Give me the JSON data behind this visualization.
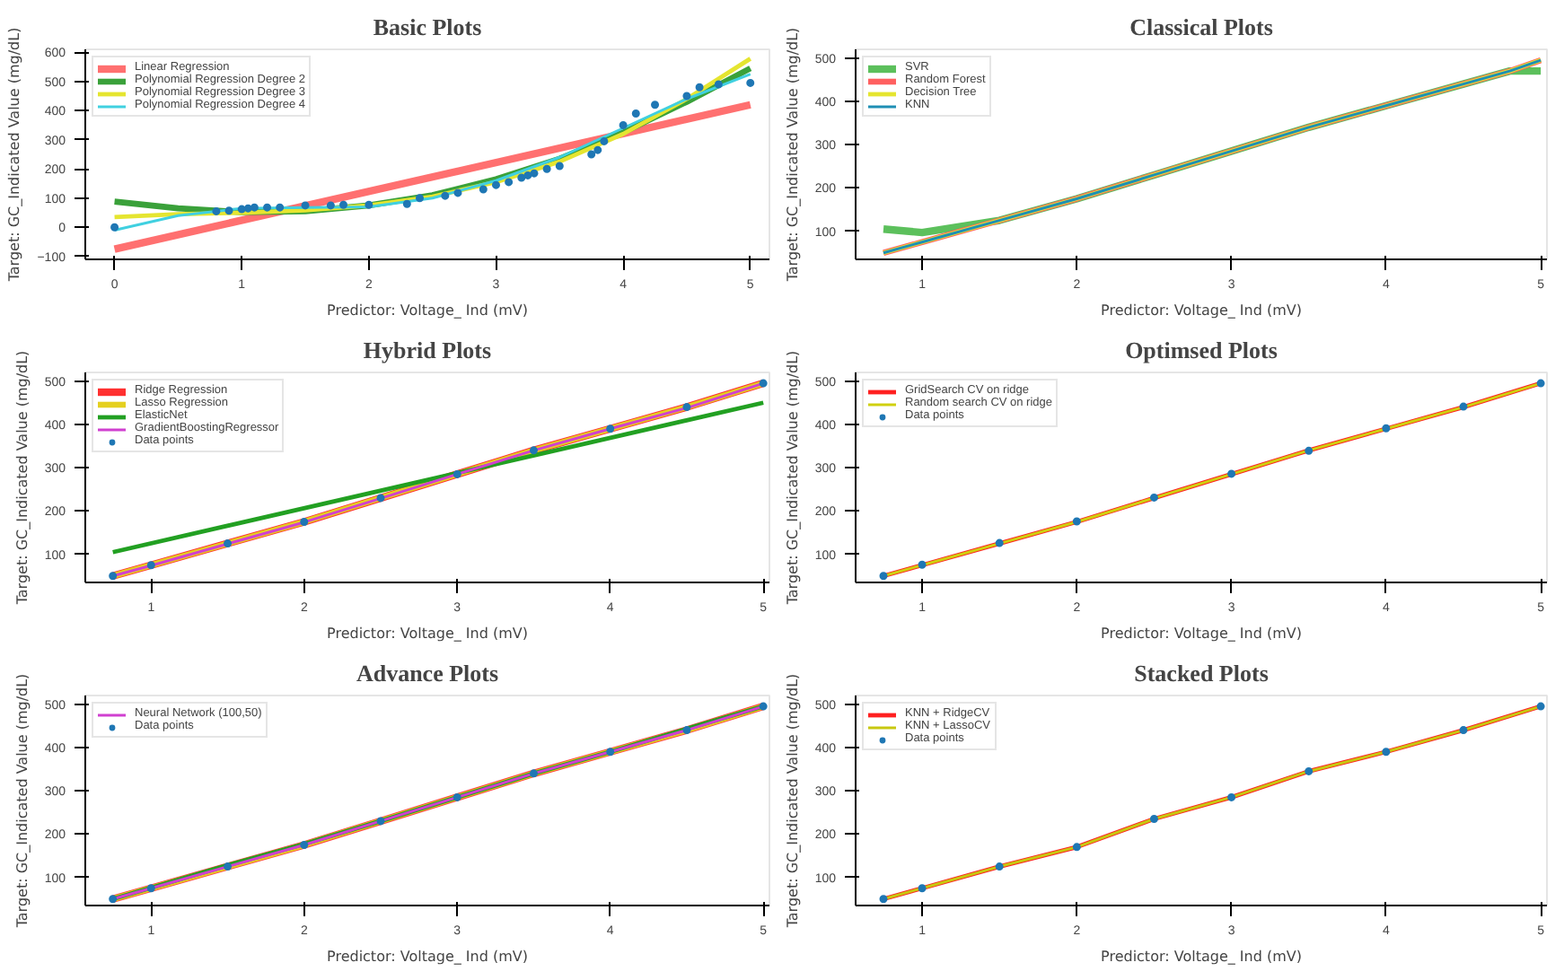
{
  "chart_data": [
    {
      "type": "line",
      "title": "Basic Plots",
      "xlabel": "Predictor: Voltage_ Ind (mV)",
      "ylabel": "Target: GC_Indicated Value (mg/dL)",
      "xlim": [
        -0.23,
        5.15
      ],
      "ylim": [
        -110,
        610
      ],
      "xticks": [
        0,
        1,
        2,
        3,
        4,
        5
      ],
      "yticks": [
        -100,
        0,
        100,
        200,
        300,
        400,
        500,
        600
      ],
      "legend": "top left",
      "x": [
        0,
        0.5,
        1,
        1.5,
        2,
        2.5,
        3,
        3.5,
        4,
        4.5,
        5
      ],
      "series": [
        {
          "name": "Linear Regression",
          "color": "#ff7070",
          "x": [
            0,
            5
          ],
          "values": [
            -75,
            420
          ]
        },
        {
          "name": "Polynomial Regression Degree 2",
          "color": "#3aa13a",
          "values": [
            88,
            65,
            52,
            55,
            75,
            110,
            165,
            235,
            325,
            430,
            545
          ]
        },
        {
          "name": "Polynomial Regression Degree 3",
          "color": "#e5e530",
          "values": [
            35,
            45,
            50,
            58,
            75,
            105,
            155,
            225,
            320,
            440,
            578
          ]
        },
        {
          "name": "Polynomial Regression Degree 4",
          "color": "#40d0e0",
          "values": [
            -10,
            40,
            65,
            68,
            70,
            100,
            160,
            240,
            340,
            440,
            525
          ]
        },
        {
          "type": "scatter",
          "color": "#1f77b4",
          "x": [
            0,
            0.8,
            0.9,
            1,
            1.05,
            1.1,
            1.2,
            1.3,
            1.5,
            1.7,
            1.8,
            2,
            2.3,
            2.4,
            2.6,
            2.7,
            2.9,
            3,
            3.1,
            3.2,
            3.25,
            3.3,
            3.4,
            3.5,
            3.75,
            3.8,
            3.85,
            4,
            4.1,
            4.25,
            4.5,
            4.6,
            4.75,
            5
          ],
          "values": [
            0,
            55,
            57,
            62,
            65,
            68,
            68,
            68,
            75,
            75,
            77,
            77,
            80,
            100,
            108,
            118,
            130,
            145,
            155,
            170,
            178,
            185,
            200,
            210,
            250,
            265,
            295,
            350,
            390,
            420,
            450,
            480,
            490,
            495
          ]
        }
      ]
    },
    {
      "type": "line",
      "title": "Classical Plots",
      "xlabel": "Predictor: Voltage_ Ind (mV)",
      "ylabel": "Target: GC_Indicated Value (mg/dL)",
      "xlim": [
        0.57,
        5.04
      ],
      "ylim": [
        35,
        520
      ],
      "xticks": [
        1,
        2,
        3,
        4,
        5
      ],
      "yticks": [
        100,
        200,
        300,
        400,
        500
      ],
      "legend": "top left",
      "x": [
        0.75,
        1,
        1.5,
        2,
        2.5,
        3,
        3.5,
        4,
        4.5,
        4.8,
        5
      ],
      "series": [
        {
          "name": "SVR",
          "color": "#5cc05c",
          "values": [
            105,
            97,
            125,
            175,
            230,
            285,
            340,
            390,
            440,
            470,
            470
          ]
        },
        {
          "name": "Random Forest",
          "color": "#ff6060",
          "values": [
            50,
            75,
            125,
            175,
            230,
            285,
            340,
            390,
            440,
            470,
            495
          ]
        },
        {
          "name": "Decision Tree",
          "color": "#e5e530",
          "values": [
            50,
            75,
            125,
            175,
            230,
            285,
            340,
            390,
            440,
            470,
            495
          ]
        },
        {
          "name": "KNN",
          "color": "#1f8fb4",
          "values": [
            50,
            75,
            125,
            175,
            230,
            285,
            340,
            390,
            440,
            470,
            495
          ]
        }
      ]
    },
    {
      "type": "line",
      "title": "Hybrid Plots",
      "xlabel": "Predictor: Voltage_ Ind (mV)",
      "ylabel": "Target: GC_Indicated Value (mg/dL)",
      "xlim": [
        0.57,
        5.04
      ],
      "ylim": [
        35,
        520
      ],
      "xticks": [
        1,
        2,
        3,
        4,
        5
      ],
      "yticks": [
        100,
        200,
        300,
        400,
        500
      ],
      "legend": "top left",
      "x": [
        0.75,
        1,
        1.5,
        2,
        2.5,
        3,
        3.5,
        4,
        4.5,
        5
      ],
      "series": [
        {
          "name": "Ridge Regression",
          "color": "#ff3030",
          "values": [
            50,
            75,
            125,
            175,
            230,
            285,
            340,
            390,
            440,
            495
          ]
        },
        {
          "name": "Lasso Regression",
          "color": "#e5d020",
          "values": [
            50,
            75,
            125,
            175,
            230,
            285,
            340,
            390,
            440,
            495
          ]
        },
        {
          "name": "ElasticNet",
          "color": "#22a022",
          "x": [
            0.75,
            5
          ],
          "values": [
            105,
            450
          ]
        },
        {
          "name": "GradientBoostingRegressor",
          "color": "#d040d0",
          "values": [
            50,
            74,
            124,
            174,
            229,
            285,
            340,
            390,
            438,
            495
          ]
        },
        {
          "name": "Data points",
          "type": "scatter",
          "color": "#1f77b4",
          "values": [
            50,
            75,
            125,
            175,
            230,
            285,
            340,
            390,
            440,
            495
          ]
        }
      ]
    },
    {
      "type": "line",
      "title": "Optimsed Plots",
      "xlabel": "Predictor: Voltage_ Ind (mV)",
      "ylabel": "Target: GC_Indicated Value (mg/dL)",
      "xlim": [
        0.57,
        5.04
      ],
      "ylim": [
        35,
        520
      ],
      "xticks": [
        1,
        2,
        3,
        4,
        5
      ],
      "yticks": [
        100,
        200,
        300,
        400,
        500
      ],
      "legend": "top left",
      "x": [
        0.75,
        1,
        1.5,
        2,
        2.5,
        3,
        3.5,
        4,
        4.5,
        5
      ],
      "series": [
        {
          "name": "GridSearch CV on ridge",
          "color": "#ff2020",
          "values": [
            50,
            75,
            125,
            175,
            230,
            285,
            340,
            390,
            440,
            495
          ]
        },
        {
          "name": "Random search CV on ridge",
          "color": "#d0d010",
          "values": [
            50,
            75,
            125,
            175,
            230,
            285,
            340,
            390,
            440,
            495
          ]
        },
        {
          "name": "Data points",
          "type": "scatter",
          "color": "#1f77b4",
          "values": [
            50,
            76,
            126,
            176,
            231,
            286,
            339,
            391,
            441,
            495
          ]
        }
      ]
    },
    {
      "type": "line",
      "title": "Advance Plots",
      "xlabel": "Predictor: Voltage_ Ind (mV)",
      "ylabel": "Target: GC_Indicated Value (mg/dL)",
      "xlim": [
        0.57,
        5.04
      ],
      "ylim": [
        35,
        520
      ],
      "xticks": [
        1,
        2,
        3,
        4,
        5
      ],
      "yticks": [
        100,
        200,
        300,
        400,
        500
      ],
      "legend": "top left",
      "x": [
        0.75,
        1,
        1.5,
        2,
        2.5,
        3,
        3.5,
        4,
        4.5,
        5
      ],
      "series": [
        {
          "color": "#ff4040",
          "values": [
            50,
            75,
            125,
            175,
            230,
            285,
            340,
            390,
            440,
            495
          ]
        },
        {
          "color": "#e5d020",
          "values": [
            50,
            75,
            125,
            175,
            230,
            285,
            340,
            390,
            440,
            495
          ]
        },
        {
          "color": "#22a022",
          "values": [
            50,
            76,
            128,
            177,
            230,
            285,
            340,
            390,
            443,
            495
          ]
        },
        {
          "name": "Neural Network (100,50)",
          "color": "#d040d0",
          "values": [
            50,
            75,
            125,
            175,
            230,
            285,
            340,
            390,
            440,
            495
          ]
        },
        {
          "name": "Data points",
          "type": "scatter",
          "color": "#1f77b4",
          "values": [
            50,
            75,
            125,
            175,
            230,
            285,
            340,
            390,
            440,
            495
          ]
        }
      ]
    },
    {
      "type": "line",
      "title": "Stacked Plots",
      "xlabel": "Predictor: Voltage_ Ind (mV)",
      "ylabel": "Target: GC_Indicated Value (mg/dL)",
      "xlim": [
        0.57,
        5.04
      ],
      "ylim": [
        35,
        520
      ],
      "xticks": [
        1,
        2,
        3,
        4,
        5
      ],
      "yticks": [
        100,
        200,
        300,
        400,
        500
      ],
      "legend": "top left",
      "x": [
        0.75,
        1,
        1.5,
        2,
        2.5,
        3,
        3.5,
        4,
        4.5,
        5
      ],
      "series": [
        {
          "name": "KNN + RidgeCV",
          "color": "#ff2020",
          "values": [
            50,
            75,
            125,
            170,
            235,
            285,
            345,
            390,
            440,
            495
          ]
        },
        {
          "name": "KNN + LassoCV",
          "color": "#c8c810",
          "values": [
            50,
            75,
            125,
            170,
            235,
            285,
            345,
            390,
            440,
            495
          ]
        },
        {
          "name": "Data points",
          "type": "scatter",
          "color": "#1f77b4",
          "values": [
            50,
            75,
            125,
            170,
            235,
            285,
            345,
            390,
            440,
            495
          ]
        }
      ]
    }
  ]
}
